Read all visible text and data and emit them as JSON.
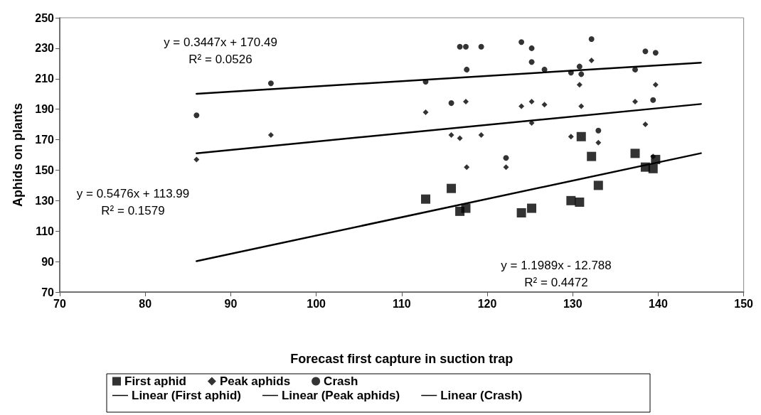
{
  "chart_data": {
    "type": "scatter",
    "xlabel": "Forecast first capture in suction trap",
    "ylabel": "Aphids on plants",
    "xlim": [
      70,
      150
    ],
    "xticks": [
      70,
      80,
      90,
      100,
      110,
      120,
      130,
      140,
      150
    ],
    "ylim": [
      70,
      250
    ],
    "yticks": [
      70,
      90,
      110,
      130,
      150,
      170,
      190,
      210,
      230,
      250
    ],
    "grid": false,
    "legend": "bottom",
    "series": [
      {
        "name": "First aphid",
        "color": "#000000",
        "marker": "square",
        "x": [
          112.8,
          115.8,
          116.8,
          117.5,
          124,
          125.2,
          129.8,
          130.8,
          131,
          132.2,
          133,
          137.3,
          138.5,
          139.4,
          139.7
        ],
        "values": [
          131,
          138,
          123,
          125,
          122,
          125,
          130,
          129,
          172,
          159,
          140,
          161,
          152,
          151,
          157
        ]
      },
      {
        "name": "Peak aphids",
        "color": "#000000",
        "marker": "diamond",
        "x": [
          86,
          94.7,
          112.8,
          115.8,
          116.8,
          117.5,
          117.6,
          119.3,
          122.2,
          124,
          125.2,
          125.2,
          126.7,
          129.8,
          130.8,
          131,
          132.2,
          133,
          137.3,
          138.5,
          139.4,
          139.7
        ],
        "values": [
          157,
          173,
          188,
          173,
          171,
          195,
          152,
          173,
          152,
          192,
          195,
          181,
          193,
          172,
          206,
          192,
          222,
          168,
          195,
          180,
          159,
          206
        ]
      },
      {
        "name": "Crash",
        "color": "#000000",
        "marker": "circle",
        "x": [
          86,
          94.7,
          112.8,
          115.8,
          116.8,
          117.5,
          117.6,
          119.3,
          122.2,
          124,
          125.2,
          125.2,
          126.7,
          129.8,
          130.8,
          131,
          132.2,
          133,
          137.3,
          138.5,
          139.4,
          139.7
        ],
        "values": [
          186,
          207,
          208,
          194,
          231,
          231,
          216,
          231,
          158,
          234,
          230,
          221,
          216,
          214,
          218,
          213,
          236,
          176,
          216,
          228,
          196,
          227
        ]
      },
      {
        "name": "Linear (First aphid)",
        "type": "line",
        "color": "#000000",
        "marker": "none",
        "line_style": "solid",
        "x": [
          86,
          145
        ],
        "values": [
          90.3,
          161.1
        ]
      },
      {
        "name": "Linear (Peak aphids)",
        "type": "line",
        "color": "#000000",
        "marker": "none",
        "line_style": "solid",
        "x": [
          86,
          145
        ],
        "values": [
          161.1,
          193.4
        ]
      },
      {
        "name": "Linear (Crash)",
        "type": "line",
        "color": "#000000",
        "marker": "none",
        "line_style": "solid",
        "x": [
          86,
          145
        ],
        "values": [
          200.1,
          220.5
        ]
      }
    ],
    "annotations": [
      "y = 0.3447x + 170.49\nR² = 0.0526",
      "y = 0.5476x + 113.99\nR² = 0.1579",
      "y = 1.1989x - 12.788\nR² = 0.4472"
    ]
  }
}
